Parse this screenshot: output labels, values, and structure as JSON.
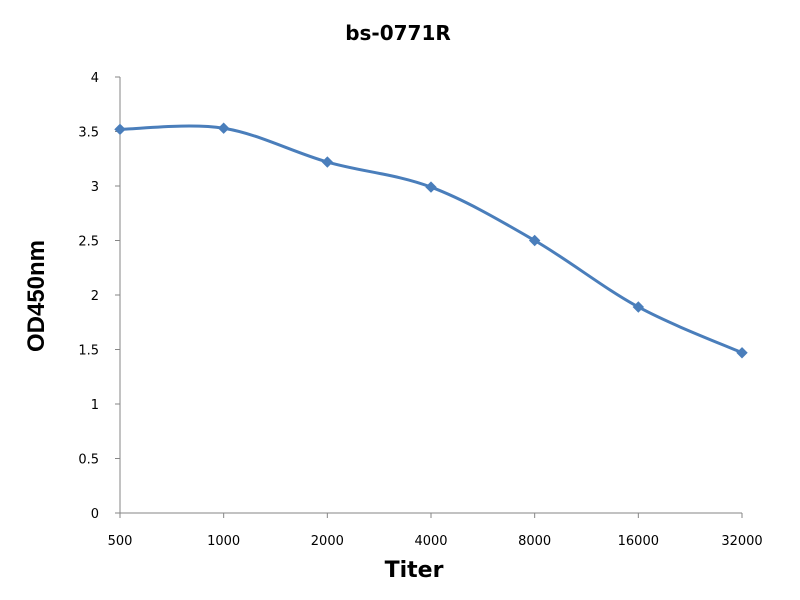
{
  "chart_data": {
    "type": "line",
    "title": "bs-0771R",
    "xlabel": "Titer",
    "ylabel": "OD450nm",
    "categories": [
      "500",
      "1000",
      "2000",
      "4000",
      "8000",
      "16000",
      "32000"
    ],
    "series": [
      {
        "values": [
          3.52,
          3.53,
          3.22,
          2.99,
          2.5,
          1.89,
          1.47
        ]
      }
    ],
    "ylim": [
      0,
      4
    ],
    "yticks": [
      "0",
      "0.5",
      "1",
      "1.5",
      "2",
      "2.5",
      "3",
      "3.5",
      "4"
    ],
    "grid": false,
    "legend": "none",
    "line_color": "#4a7ebb",
    "marker": "diamond",
    "smooth": true
  }
}
